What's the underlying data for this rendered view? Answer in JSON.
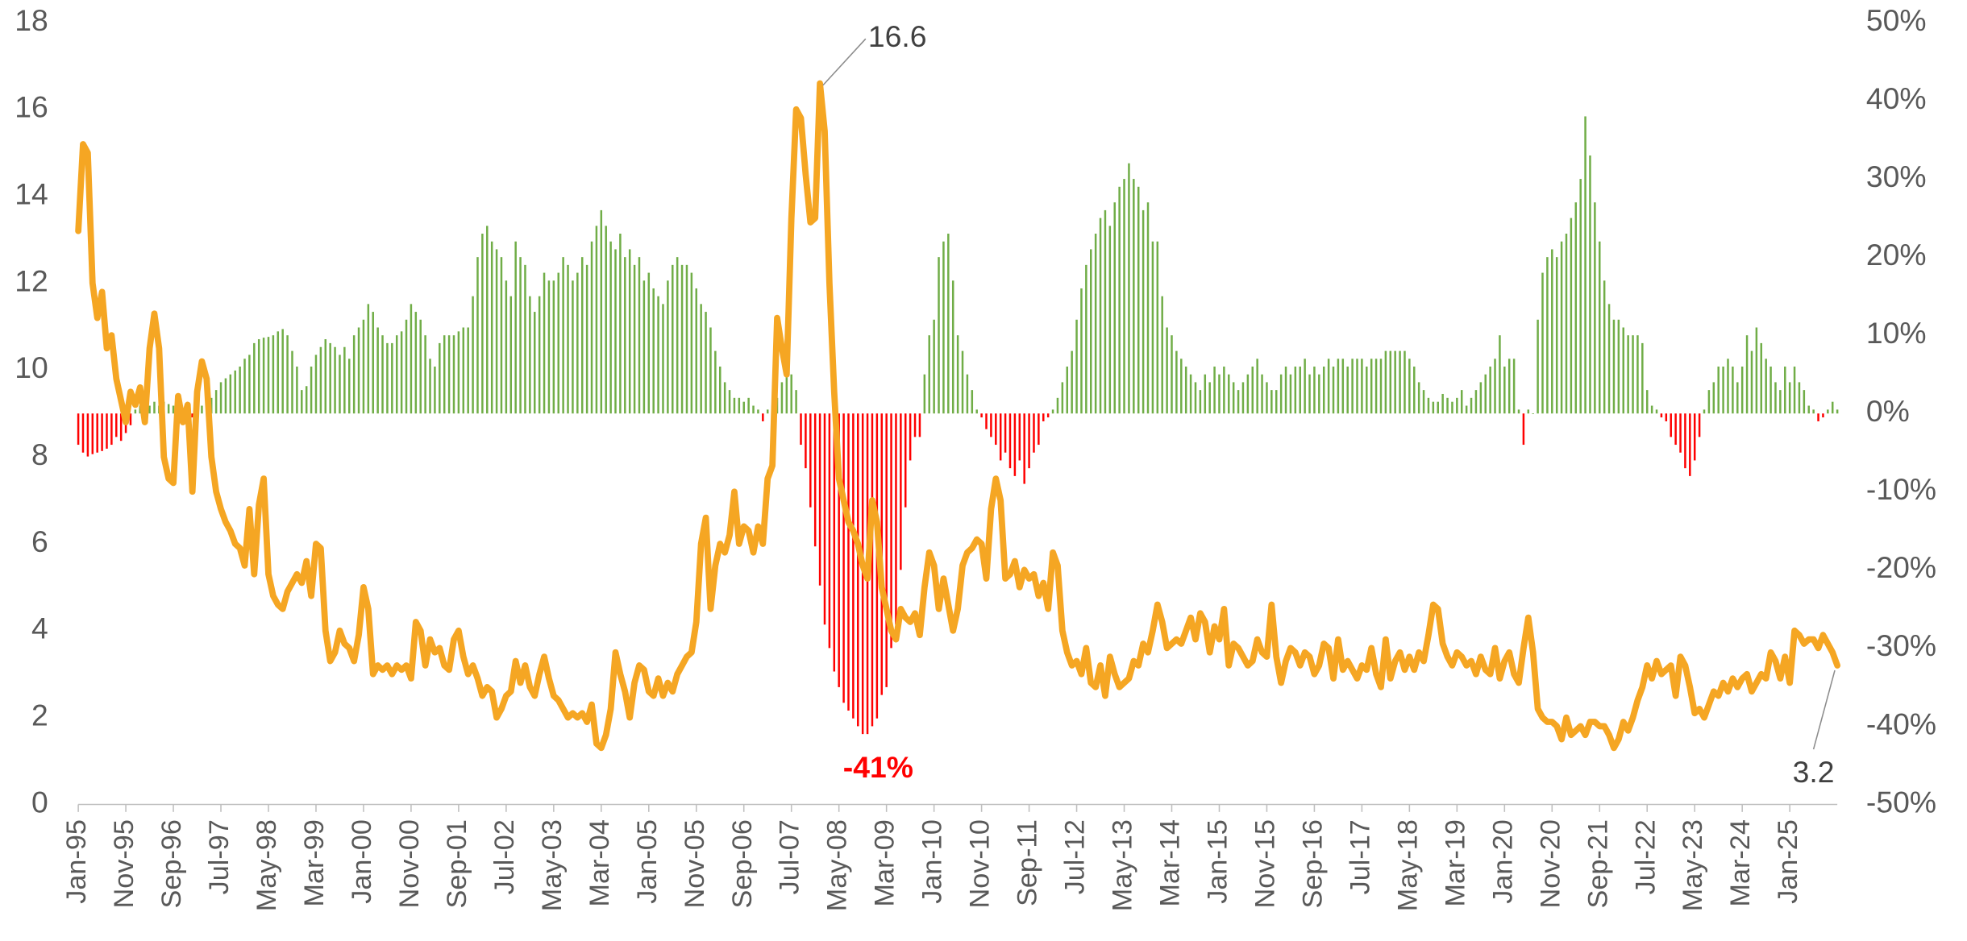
{
  "chart_data": {
    "type": "bar_line",
    "categories": [
      "Jan-95",
      null,
      null,
      null,
      null,
      null,
      null,
      null,
      null,
      null,
      "Nov-95",
      null,
      null,
      null,
      null,
      null,
      null,
      null,
      null,
      null,
      "Sep-96",
      null,
      null,
      null,
      null,
      null,
      null,
      null,
      null,
      null,
      "Jul-97",
      null,
      null,
      null,
      null,
      null,
      null,
      null,
      null,
      null,
      "May-98",
      null,
      null,
      null,
      null,
      null,
      null,
      null,
      null,
      null,
      "Mar-99",
      null,
      null,
      null,
      null,
      null,
      null,
      null,
      null,
      null,
      "Jan-00",
      null,
      null,
      null,
      null,
      null,
      null,
      null,
      null,
      null,
      "Nov-00",
      null,
      null,
      null,
      null,
      null,
      null,
      null,
      null,
      null,
      "Sep-01",
      null,
      null,
      null,
      null,
      null,
      null,
      null,
      null,
      null,
      "Jul-02",
      null,
      null,
      null,
      null,
      null,
      null,
      null,
      null,
      null,
      "May-03",
      null,
      null,
      null,
      null,
      null,
      null,
      null,
      null,
      null,
      "Mar-04",
      null,
      null,
      null,
      null,
      null,
      null,
      null,
      null,
      null,
      "Jan-05",
      null,
      null,
      null,
      null,
      null,
      null,
      null,
      null,
      null,
      "Nov-05",
      null,
      null,
      null,
      null,
      null,
      null,
      null,
      null,
      null,
      "Sep-06",
      null,
      null,
      null,
      null,
      null,
      null,
      null,
      null,
      null,
      "Jul-07",
      null,
      null,
      null,
      null,
      null,
      null,
      null,
      null,
      null,
      "May-08",
      null,
      null,
      null,
      null,
      null,
      null,
      null,
      null,
      null,
      "Mar-09",
      null,
      null,
      null,
      null,
      null,
      null,
      null,
      null,
      null,
      "Jan-10",
      null,
      null,
      null,
      null,
      null,
      null,
      null,
      null,
      null,
      "Nov-10",
      null,
      null,
      null,
      null,
      null,
      null,
      null,
      null,
      null,
      "Sep-11",
      null,
      null,
      null,
      null,
      null,
      null,
      null,
      null,
      null,
      "Jul-12",
      null,
      null,
      null,
      null,
      null,
      null,
      null,
      null,
      null,
      "May-13",
      null,
      null,
      null,
      null,
      null,
      null,
      null,
      null,
      null,
      "Mar-14",
      null,
      null,
      null,
      null,
      null,
      null,
      null,
      null,
      null,
      "Jan-15",
      null,
      null,
      null,
      null,
      null,
      null,
      null,
      null,
      null,
      "Nov-15",
      null,
      null,
      null,
      null,
      null,
      null,
      null,
      null,
      null,
      "Sep-16",
      null,
      null,
      null,
      null,
      null,
      null,
      null,
      null,
      null,
      "Jul-17",
      null,
      null,
      null,
      null,
      null,
      null,
      null,
      null,
      null,
      "May-18",
      null,
      null,
      null,
      null,
      null,
      null,
      null,
      null,
      null,
      "Mar-19",
      null,
      null,
      null,
      null,
      null,
      null,
      null,
      null,
      null,
      "Jan-20",
      null,
      null,
      null,
      null,
      null,
      null,
      null,
      null,
      null,
      "Nov-20",
      null,
      null,
      null,
      null,
      null,
      null,
      null,
      null,
      null,
      "Sep-21",
      null,
      null,
      null,
      null,
      null,
      null,
      null,
      null,
      null,
      "Jul-22",
      null,
      null,
      null,
      null,
      null,
      null,
      null,
      null,
      null,
      "May-23",
      null,
      null,
      null,
      null,
      null,
      null,
      null,
      null,
      null,
      "Mar-24",
      null,
      null,
      null,
      null,
      null,
      null,
      null,
      null,
      null,
      "Jan-25",
      null,
      null,
      null,
      null,
      null,
      null,
      null,
      null,
      null,
      null
    ],
    "series": [
      {
        "type": "bar",
        "axis": "y2",
        "color": "#70ad47",
        "negative_color": "#ff0000",
        "values": [
          -4,
          -5,
          -5.5,
          -5.2,
          -5,
          -4.8,
          -4.5,
          -4,
          -3,
          -3.5,
          -2.5,
          -1.5,
          0.5,
          1,
          1.5,
          1,
          1.5,
          1,
          1.5,
          1.2,
          1,
          -0.5,
          -1,
          0.5,
          -0.5,
          0.5,
          1,
          1.5,
          2,
          3,
          4,
          4.5,
          5,
          5.5,
          6,
          7,
          7.5,
          9,
          9.5,
          9.7,
          9.8,
          10,
          10.5,
          10.8,
          10,
          8,
          6,
          3,
          3.5,
          6,
          7.5,
          8.5,
          9.5,
          9,
          8.5,
          7.5,
          8.5,
          7,
          10,
          11,
          12,
          14,
          13,
          11,
          10,
          9,
          9,
          10,
          10.5,
          12,
          14,
          13,
          12,
          10,
          7,
          6,
          9,
          10,
          10,
          10,
          10.5,
          11,
          11,
          15,
          20,
          23,
          24,
          22,
          21,
          20,
          17,
          15,
          22,
          20,
          19,
          15,
          13,
          15,
          18,
          17,
          17,
          18,
          20,
          19,
          17,
          18,
          20,
          19,
          22,
          24,
          26,
          24,
          22,
          21,
          23,
          20,
          21,
          19,
          20,
          17,
          18,
          16,
          15,
          14,
          17,
          19,
          20,
          19,
          19,
          18,
          16,
          14,
          13,
          11,
          8,
          6,
          4,
          3,
          2,
          2,
          1.5,
          2,
          1,
          0.5,
          -1,
          0.5,
          1,
          2,
          4,
          6,
          5,
          3,
          -4,
          -7,
          -12,
          -17,
          -22,
          -27,
          -30,
          -33,
          -35,
          -37,
          -38,
          -39,
          -40,
          -41,
          -41,
          -40,
          -39,
          -36,
          -35,
          -30,
          -27,
          -20,
          -12,
          -6,
          -3,
          -3,
          5,
          10,
          12,
          20,
          22,
          23,
          17,
          10,
          8,
          5,
          3,
          0.5,
          -0.5,
          -2,
          -3,
          -4,
          -6,
          -5,
          -7,
          -8,
          -6,
          -9,
          -7,
          -5,
          -4,
          -1,
          -0.5,
          0.5,
          2,
          4,
          6,
          8,
          12,
          16,
          19,
          21,
          23,
          25,
          26,
          24,
          27,
          29,
          30,
          32,
          30,
          29,
          26,
          27,
          22,
          22,
          15,
          11,
          10,
          8,
          7,
          6,
          5,
          4,
          3,
          5,
          4,
          6,
          5,
          6,
          5,
          4,
          3,
          4,
          5,
          6,
          7,
          5,
          4,
          3,
          3,
          5,
          6,
          5,
          6,
          6,
          7,
          5,
          6,
          5,
          6,
          7,
          6,
          7,
          7,
          6,
          7,
          7,
          7,
          6,
          7,
          7,
          7,
          8,
          8,
          8,
          8,
          8,
          7,
          6,
          4,
          3,
          2,
          1.5,
          1.5,
          2.5,
          2,
          1.5,
          2,
          3,
          1,
          2,
          3,
          4,
          5,
          6,
          7,
          10,
          6,
          7,
          7,
          0.5,
          -4,
          0.5,
          0,
          12,
          18,
          20,
          21,
          20,
          22,
          23,
          25,
          27,
          30,
          38,
          33,
          27,
          22,
          17,
          14,
          12,
          12,
          11,
          10,
          10,
          10,
          9,
          3,
          1,
          0.5,
          -0.5,
          -1,
          -3,
          -4,
          -5,
          -7,
          -8,
          -6,
          -3,
          0.5,
          3,
          4,
          6,
          6,
          7,
          6,
          4,
          6,
          10,
          8,
          11,
          9,
          7,
          6,
          4,
          3,
          6,
          4,
          6,
          4,
          3,
          1,
          0.5,
          -1,
          -0.5,
          0.5,
          1.5,
          0.5
        ]
      },
      {
        "type": "line",
        "color": "#f5a623",
        "values": [
          13.2,
          15.2,
          15.0,
          12.0,
          11.2,
          11.8,
          10.5,
          10.8,
          9.8,
          9.3,
          8.8,
          9.5,
          9.2,
          9.6,
          8.8,
          10.5,
          11.3,
          10.5,
          8.0,
          7.5,
          7.4,
          9.4,
          8.8,
          9.2,
          7.2,
          9.5,
          10.2,
          9.8,
          8.0,
          7.2,
          6.8,
          6.5,
          6.3,
          6.0,
          5.9,
          5.5,
          6.8,
          5.3,
          6.9,
          7.5,
          5.3,
          4.8,
          4.6,
          4.5,
          4.9,
          5.1,
          5.3,
          5.1,
          5.6,
          4.8,
          6.0,
          5.9,
          4.0,
          3.3,
          3.5,
          4.0,
          3.7,
          3.6,
          3.3,
          3.9,
          5.0,
          4.5,
          3.0,
          3.2,
          3.1,
          3.2,
          3.0,
          3.2,
          3.1,
          3.2,
          2.9,
          4.2,
          4.0,
          3.2,
          3.8,
          3.5,
          3.6,
          3.2,
          3.1,
          3.8,
          4.0,
          3.4,
          3.0,
          3.2,
          2.9,
          2.5,
          2.7,
          2.6,
          2.0,
          2.2,
          2.5,
          2.6,
          3.3,
          2.8,
          3.2,
          2.7,
          2.5,
          3.0,
          3.4,
          2.9,
          2.5,
          2.4,
          2.2,
          2.0,
          2.1,
          2.0,
          2.1,
          1.9,
          2.3,
          1.4,
          1.3,
          1.6,
          2.2,
          3.5,
          3.0,
          2.6,
          2.0,
          2.8,
          3.2,
          3.1,
          2.6,
          2.5,
          2.9,
          2.5,
          2.8,
          2.6,
          3.0,
          3.2,
          3.4,
          3.5,
          4.2,
          6.0,
          6.6,
          4.5,
          5.5,
          6.0,
          5.8,
          6.2,
          7.2,
          6.0,
          6.4,
          6.3,
          5.8,
          6.4,
          6.0,
          7.5,
          7.8,
          11.2,
          10.5,
          9.9,
          13.5,
          16.0,
          15.8,
          14.5,
          13.4,
          13.5,
          16.6,
          15.5,
          12.0,
          9.5,
          7.5,
          7.0,
          6.5,
          6.3,
          6.0,
          5.5,
          5.2,
          7.0,
          6.5,
          5.0,
          4.5,
          4.0,
          3.8,
          4.5,
          4.3,
          4.2,
          4.4,
          3.9,
          5.0,
          5.8,
          5.5,
          4.5,
          5.2,
          4.6,
          4.0,
          4.5,
          5.5,
          5.8,
          5.9,
          6.1,
          6.0,
          5.2,
          6.8,
          7.5,
          7.0,
          5.2,
          5.3,
          5.6,
          5.0,
          5.4,
          5.2,
          5.3,
          4.8,
          5.1,
          4.5,
          5.8,
          5.5,
          4.0,
          3.5,
          3.2,
          3.3,
          3.0,
          3.6,
          2.8,
          2.7,
          3.2,
          2.5,
          3.4,
          3.0,
          2.7,
          2.8,
          2.9,
          3.3,
          3.2,
          3.7,
          3.5,
          4.0,
          4.6,
          4.2,
          3.6,
          3.7,
          3.8,
          3.7,
          4.0,
          4.3,
          3.8,
          4.4,
          4.2,
          3.5,
          4.1,
          3.8,
          4.5,
          3.2,
          3.7,
          3.6,
          3.4,
          3.2,
          3.3,
          3.8,
          3.5,
          3.4,
          4.6,
          3.4,
          2.8,
          3.3,
          3.6,
          3.5,
          3.2,
          3.5,
          3.4,
          3.0,
          3.2,
          3.7,
          3.6,
          2.9,
          3.8,
          3.1,
          3.3,
          3.1,
          2.9,
          3.2,
          3.1,
          3.6,
          3.0,
          2.7,
          3.8,
          2.9,
          3.3,
          3.5,
          3.1,
          3.4,
          3.1,
          3.5,
          3.3,
          3.9,
          4.6,
          4.5,
          3.7,
          3.4,
          3.2,
          3.5,
          3.4,
          3.2,
          3.3,
          3.0,
          3.4,
          3.1,
          3.0,
          3.6,
          2.9,
          3.3,
          3.5,
          3.0,
          2.8,
          3.6,
          4.3,
          3.5,
          2.2,
          2.0,
          1.9,
          1.9,
          1.8,
          1.5,
          2.0,
          1.6,
          1.7,
          1.8,
          1.6,
          1.9,
          1.9,
          1.8,
          1.8,
          1.6,
          1.3,
          1.5,
          1.9,
          1.7,
          2.0,
          2.4,
          2.7,
          3.2,
          2.9,
          3.3,
          3.0,
          3.1,
          3.2,
          2.5,
          3.4,
          3.2,
          2.7,
          2.1,
          2.2,
          2.0,
          2.3,
          2.6,
          2.5,
          2.8,
          2.6,
          2.9,
          2.7,
          2.9,
          3.0,
          2.6,
          2.8,
          3.0,
          2.9,
          3.5,
          3.3,
          2.9,
          3.4,
          2.8,
          4.0,
          3.9,
          3.7,
          3.8,
          3.8,
          3.6,
          3.9,
          3.7,
          3.5,
          3.2
        ]
      }
    ],
    "ylim": [
      0,
      18
    ],
    "yticks": [
      0,
      2,
      4,
      6,
      8,
      10,
      12,
      14,
      16,
      18
    ],
    "y2lim": [
      -50,
      50
    ],
    "y2ticks": [
      {
        "value": -50,
        "label": "-50%"
      },
      {
        "value": -40,
        "label": "-40%"
      },
      {
        "value": -30,
        "label": "-30%"
      },
      {
        "value": -20,
        "label": "-20%"
      },
      {
        "value": -10,
        "label": "-10%"
      },
      {
        "value": 0,
        "label": "0%"
      },
      {
        "value": 10,
        "label": "10%"
      },
      {
        "value": 20,
        "label": "20%"
      },
      {
        "value": 30,
        "label": "30%"
      },
      {
        "value": 40,
        "label": "40%"
      },
      {
        "value": 50,
        "label": "50%"
      }
    ],
    "annotations": [
      {
        "text": "16.6"
      },
      {
        "text": "-41%",
        "color": "#ff0000"
      },
      {
        "text": "3.2"
      }
    ],
    "grid": false
  }
}
